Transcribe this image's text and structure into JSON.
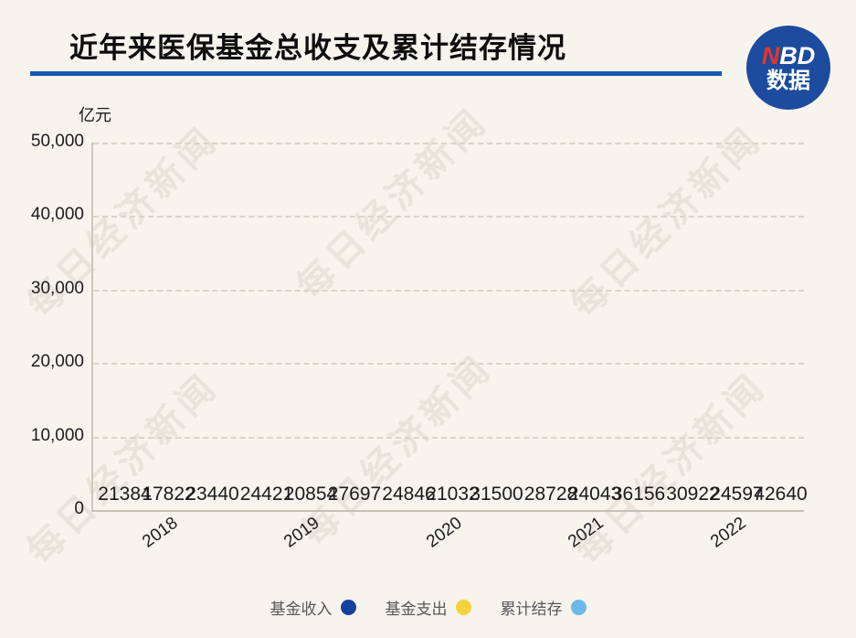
{
  "header": {
    "title": "近年来医保基金总收支及累计结存情况",
    "logo": {
      "line1_red": "N",
      "line1_white": "BD",
      "line2": "数据"
    }
  },
  "watermark": {
    "text": "每日经济新闻"
  },
  "chart_data": {
    "type": "bar",
    "title": "近年来医保基金总收支及累计结存情况",
    "unit_label": "亿元",
    "categories": [
      "2018",
      "2019",
      "2020",
      "2021",
      "2022"
    ],
    "series": [
      {
        "name": "基金收入",
        "color": "#16409e",
        "values": [
          21384,
          24421,
          24846,
          28728,
          30922
        ]
      },
      {
        "name": "基金支出",
        "color": "#f7d23c",
        "values": [
          17822,
          20854,
          21032,
          24043,
          24597
        ]
      },
      {
        "name": "累计结存",
        "color": "#6db8e8",
        "values": [
          23440,
          27697,
          31500,
          36156,
          42640
        ]
      }
    ],
    "ylim": [
      0,
      50000
    ],
    "yticks": [
      "50,000",
      "40,000",
      "30,000",
      "20,000",
      "10,000",
      "0"
    ],
    "grid": "dashed-horizontal",
    "legend_position": "bottom",
    "colors": {
      "background": "#f7f3ed",
      "title_underline": "#1559ae",
      "logo_bg": "#1d4b9e",
      "logo_red": "#e8352b"
    }
  }
}
